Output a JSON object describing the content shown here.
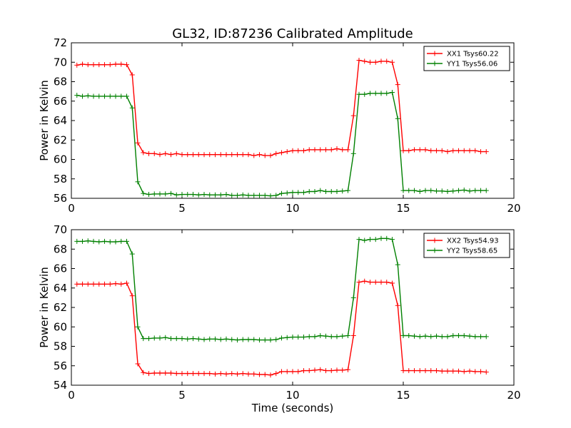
{
  "chart_data": [
    {
      "type": "line",
      "title": "GL32, ID:87236 Calibrated Amplitude",
      "xlabel": "",
      "ylabel": "Power in Kelvin",
      "xlim": [
        0,
        20
      ],
      "ylim": [
        56,
        72
      ],
      "xticks": [
        "0",
        "5",
        "10",
        "15",
        "20"
      ],
      "yticks": [
        "56",
        "58",
        "60",
        "62",
        "64",
        "66",
        "68",
        "70",
        "72"
      ],
      "legend_position": "top-right",
      "x": [
        0.25,
        0.5,
        0.75,
        1.0,
        1.25,
        1.5,
        1.75,
        2.0,
        2.25,
        2.5,
        2.75,
        3.0,
        3.25,
        3.5,
        3.75,
        4.0,
        4.25,
        4.5,
        4.75,
        5.0,
        5.25,
        5.5,
        5.75,
        6.0,
        6.25,
        6.5,
        6.75,
        7.0,
        7.25,
        7.5,
        7.75,
        8.0,
        8.25,
        8.5,
        8.75,
        9.0,
        9.25,
        9.5,
        9.75,
        10.0,
        10.25,
        10.5,
        10.75,
        11.0,
        11.25,
        11.5,
        11.75,
        12.0,
        12.25,
        12.5,
        12.75,
        13.0,
        13.25,
        13.5,
        13.75,
        14.0,
        14.25,
        14.5,
        14.75,
        15.0,
        15.25,
        15.5,
        15.75,
        16.0,
        16.25,
        16.5,
        16.75,
        17.0,
        17.25,
        17.5,
        17.75,
        18.0,
        18.25,
        18.5,
        18.75
      ],
      "series": [
        {
          "name": "XX1 Tsys60.22",
          "color": "#ff0000",
          "values": [
            69.7,
            69.8,
            69.75,
            69.75,
            69.75,
            69.75,
            69.75,
            69.8,
            69.8,
            69.75,
            68.7,
            61.7,
            60.7,
            60.6,
            60.6,
            60.5,
            60.6,
            60.5,
            60.6,
            60.5,
            60.5,
            60.5,
            60.5,
            60.5,
            60.5,
            60.5,
            60.5,
            60.5,
            60.5,
            60.5,
            60.5,
            60.5,
            60.4,
            60.5,
            60.4,
            60.4,
            60.6,
            60.7,
            60.8,
            60.9,
            60.9,
            60.9,
            61.0,
            61.0,
            61.0,
            61.0,
            61.0,
            61.1,
            61.0,
            61.0,
            64.5,
            70.2,
            70.1,
            70.0,
            70.0,
            70.1,
            70.1,
            70.0,
            67.7,
            60.9,
            60.9,
            61.0,
            61.0,
            61.0,
            60.9,
            60.9,
            60.9,
            60.8,
            60.9,
            60.9,
            60.9,
            60.9,
            60.9,
            60.8,
            60.8
          ]
        },
        {
          "name": "YY1 Tsys56.06",
          "color": "#008000",
          "values": [
            66.6,
            66.5,
            66.55,
            66.5,
            66.5,
            66.5,
            66.5,
            66.5,
            66.5,
            66.5,
            65.3,
            57.7,
            56.5,
            56.4,
            56.45,
            56.45,
            56.45,
            56.5,
            56.35,
            56.4,
            56.4,
            56.4,
            56.35,
            56.4,
            56.35,
            56.35,
            56.35,
            56.4,
            56.3,
            56.3,
            56.35,
            56.3,
            56.3,
            56.3,
            56.3,
            56.25,
            56.3,
            56.5,
            56.55,
            56.6,
            56.6,
            56.6,
            56.7,
            56.7,
            56.8,
            56.7,
            56.7,
            56.7,
            56.75,
            56.8,
            60.6,
            66.7,
            66.7,
            66.8,
            66.8,
            66.8,
            66.8,
            66.9,
            64.2,
            56.8,
            56.8,
            56.8,
            56.7,
            56.8,
            56.8,
            56.75,
            56.75,
            56.7,
            56.75,
            56.8,
            56.85,
            56.75,
            56.8,
            56.8,
            56.8
          ]
        }
      ]
    },
    {
      "type": "line",
      "title": "",
      "xlabel": "Time (seconds)",
      "ylabel": "Power in Kelvin",
      "xlim": [
        0,
        20
      ],
      "ylim": [
        54,
        70
      ],
      "xticks": [
        "0",
        "5",
        "10",
        "15",
        "20"
      ],
      "yticks": [
        "54",
        "56",
        "58",
        "60",
        "62",
        "64",
        "66",
        "68",
        "70"
      ],
      "legend_position": "top-right",
      "x": [
        0.25,
        0.5,
        0.75,
        1.0,
        1.25,
        1.5,
        1.75,
        2.0,
        2.25,
        2.5,
        2.75,
        3.0,
        3.25,
        3.5,
        3.75,
        4.0,
        4.25,
        4.5,
        4.75,
        5.0,
        5.25,
        5.5,
        5.75,
        6.0,
        6.25,
        6.5,
        6.75,
        7.0,
        7.25,
        7.5,
        7.75,
        8.0,
        8.25,
        8.5,
        8.75,
        9.0,
        9.25,
        9.5,
        9.75,
        10.0,
        10.25,
        10.5,
        10.75,
        11.0,
        11.25,
        11.5,
        11.75,
        12.0,
        12.25,
        12.5,
        12.75,
        13.0,
        13.25,
        13.5,
        13.75,
        14.0,
        14.25,
        14.5,
        14.75,
        15.0,
        15.25,
        15.5,
        15.75,
        16.0,
        16.25,
        16.5,
        16.75,
        17.0,
        17.25,
        17.5,
        17.75,
        18.0,
        18.25,
        18.5,
        18.75
      ],
      "series": [
        {
          "name": "XX2 Tsys54.93",
          "color": "#ff0000",
          "values": [
            64.4,
            64.4,
            64.4,
            64.4,
            64.4,
            64.4,
            64.4,
            64.45,
            64.4,
            64.5,
            63.2,
            56.2,
            55.3,
            55.2,
            55.25,
            55.25,
            55.25,
            55.25,
            55.2,
            55.2,
            55.2,
            55.2,
            55.2,
            55.2,
            55.2,
            55.15,
            55.2,
            55.15,
            55.2,
            55.15,
            55.2,
            55.15,
            55.15,
            55.1,
            55.1,
            55.05,
            55.2,
            55.4,
            55.4,
            55.4,
            55.4,
            55.5,
            55.5,
            55.55,
            55.6,
            55.5,
            55.5,
            55.55,
            55.55,
            55.6,
            59.1,
            64.6,
            64.7,
            64.6,
            64.6,
            64.6,
            64.6,
            64.5,
            62.2,
            55.5,
            55.5,
            55.5,
            55.5,
            55.5,
            55.5,
            55.5,
            55.45,
            55.45,
            55.45,
            55.45,
            55.4,
            55.45,
            55.4,
            55.4,
            55.35
          ]
        },
        {
          "name": "YY2 Tsys58.65",
          "color": "#008000",
          "values": [
            68.8,
            68.8,
            68.85,
            68.8,
            68.75,
            68.8,
            68.75,
            68.75,
            68.8,
            68.8,
            67.5,
            60.0,
            58.8,
            58.8,
            58.85,
            58.85,
            58.9,
            58.8,
            58.8,
            58.8,
            58.75,
            58.8,
            58.75,
            58.7,
            58.75,
            58.75,
            58.7,
            58.75,
            58.7,
            58.65,
            58.7,
            58.7,
            58.7,
            58.65,
            58.65,
            58.65,
            58.7,
            58.85,
            58.9,
            58.95,
            58.95,
            58.95,
            59.0,
            59.0,
            59.1,
            59.05,
            59.0,
            59.0,
            59.05,
            59.1,
            63.0,
            69.0,
            68.9,
            69.0,
            69.0,
            69.1,
            69.1,
            69.0,
            66.4,
            59.1,
            59.1,
            59.05,
            59.0,
            59.05,
            59.0,
            59.05,
            59.0,
            59.0,
            59.1,
            59.1,
            59.1,
            59.05,
            59.0,
            59.0,
            59.0
          ]
        }
      ]
    }
  ]
}
